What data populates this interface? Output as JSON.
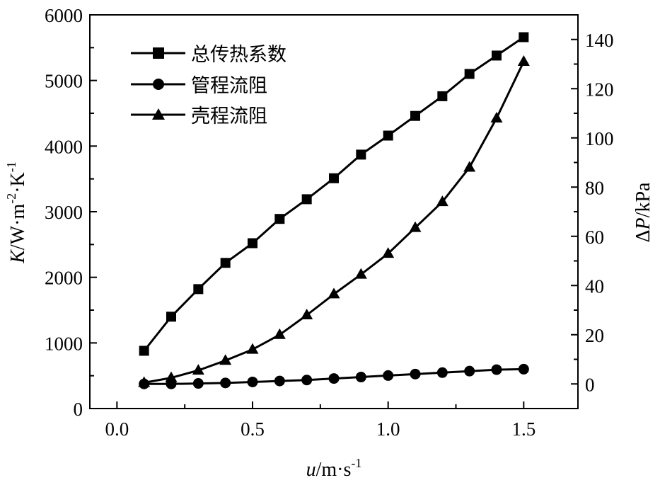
{
  "chart_data": {
    "type": "line",
    "title": "",
    "xlabel_var": "u",
    "xlabel_unit": "/m·s",
    "xlabel_sup": "-1",
    "ylabel_left_var": "K",
    "ylabel_left_unit": "/W·m",
    "ylabel_left_sup1": "-2",
    "ylabel_left_mid": "·K",
    "ylabel_left_sup2": "-1",
    "ylabel_right_prefix": "Δ",
    "ylabel_right_var": "P",
    "ylabel_right_unit": "/kPa",
    "xlim": [
      -0.1,
      1.7
    ],
    "ylim_left": [
      0,
      6000
    ],
    "ylim_right": [
      -10,
      150
    ],
    "x_ticks": [
      "0.0",
      "0.5",
      "1.0",
      "1.5"
    ],
    "x_tick_values": [
      0,
      0.5,
      1.0,
      1.5
    ],
    "y_left_ticks": [
      "0",
      "1000",
      "2000",
      "3000",
      "4000",
      "5000",
      "6000"
    ],
    "y_left_tick_values": [
      0,
      1000,
      2000,
      3000,
      4000,
      5000,
      6000
    ],
    "y_right_ticks": [
      "0",
      "20",
      "40",
      "60",
      "80",
      "100",
      "120",
      "140"
    ],
    "y_right_tick_values": [
      0,
      20,
      40,
      60,
      80,
      100,
      120,
      140
    ],
    "legend_position": "top-left",
    "x": [
      0.1,
      0.2,
      0.3,
      0.4,
      0.5,
      0.6,
      0.7,
      0.8,
      0.9,
      1.0,
      1.1,
      1.2,
      1.3,
      1.4,
      1.5
    ],
    "series": [
      {
        "name": "总传热系数",
        "axis": "left",
        "marker": "square",
        "values": [
          880,
          1400,
          1820,
          2220,
          2520,
          2890,
          3190,
          3510,
          3870,
          4160,
          4460,
          4760,
          5100,
          5380,
          5660
        ]
      },
      {
        "name": "管程流阻",
        "axis": "right",
        "marker": "circle",
        "values": [
          0,
          0,
          0.2,
          0.4,
          0.8,
          1.2,
          1.6,
          2.2,
          2.8,
          3.4,
          4.0,
          4.6,
          5.2,
          5.8,
          6.0
        ]
      },
      {
        "name": "壳程流阻",
        "axis": "right",
        "marker": "triangle",
        "values": [
          0.5,
          2.5,
          5.5,
          9.5,
          14,
          20,
          28,
          36.5,
          44.5,
          53,
          63.5,
          74,
          88,
          108,
          131
        ]
      }
    ]
  }
}
